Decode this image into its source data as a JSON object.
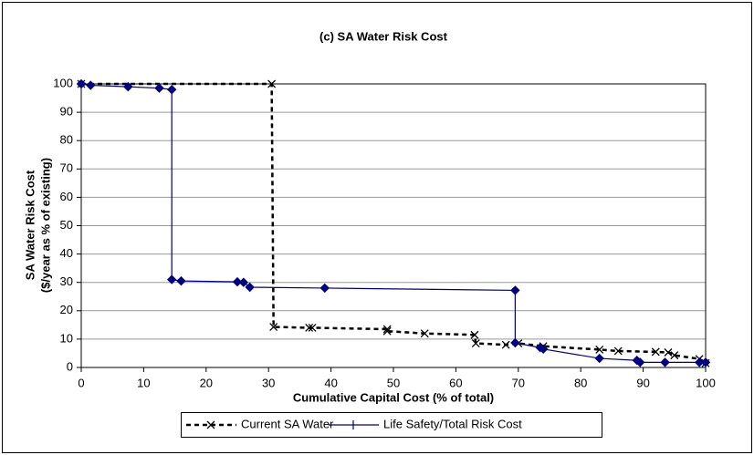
{
  "chart_data": {
    "type": "line",
    "title": "(c)  SA Water Risk Cost",
    "y_label_lines": [
      "SA Water Risk Cost",
      "($/year as % of existing)"
    ],
    "x_label": "Cumulative Capital Cost (% of total)",
    "xlim": [
      0,
      100
    ],
    "xticks": [
      0,
      10,
      20,
      30,
      40,
      50,
      60,
      70,
      80,
      90,
      100
    ],
    "ylim": [
      0,
      100
    ],
    "yticks": [
      0,
      10,
      20,
      30,
      40,
      50,
      60,
      70,
      80,
      90,
      100
    ],
    "grid": true,
    "legend": "bottom",
    "series": [
      {
        "name": "Current SA Water",
        "color": "#000000",
        "dash": true,
        "marker": "x",
        "x": [
          0,
          30.5,
          30.8,
          36.5,
          37,
          49,
          49,
          55,
          63,
          63.2,
          68,
          70,
          74,
          83,
          86,
          92,
          94,
          95,
          99,
          100
        ],
        "values": [
          100,
          100,
          14.3,
          14,
          14,
          13.5,
          12.8,
          12,
          11.5,
          8.5,
          8,
          8.5,
          7.5,
          6.3,
          5.8,
          5.5,
          5.3,
          4.3,
          3,
          1.5
        ]
      },
      {
        "name": "Life Safety/Total Risk Cost",
        "color": "#000080",
        "dash": false,
        "marker": "diamond",
        "x": [
          0,
          1.5,
          7.5,
          12.5,
          14.5,
          14.5,
          16,
          25,
          26,
          27,
          39,
          69.5,
          69.5,
          73.5,
          74,
          83,
          89,
          89.5,
          93.5,
          99,
          100
        ],
        "values": [
          100,
          99.5,
          99,
          98.5,
          98,
          31,
          30.5,
          30.2,
          30,
          28.3,
          28,
          27.2,
          8.7,
          7,
          6.5,
          3.2,
          2.5,
          1.8,
          1.8,
          1.8,
          1.8
        ]
      }
    ]
  }
}
